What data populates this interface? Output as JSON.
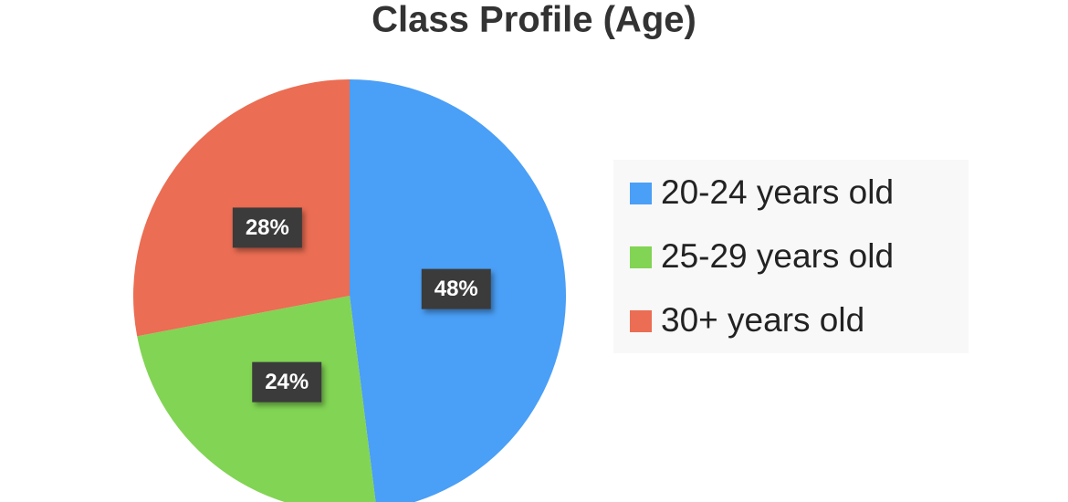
{
  "chart_data": {
    "type": "pie",
    "title": "Class Profile (Age)",
    "categories": [
      "20-24 years old",
      "25-29 years old",
      "30+ years old"
    ],
    "values": [
      48,
      24,
      28
    ],
    "value_labels": [
      "48%",
      "24%",
      "28%"
    ],
    "colors": [
      "#4a9ff6",
      "#82d454",
      "#eb6d53"
    ],
    "legend": "right"
  }
}
